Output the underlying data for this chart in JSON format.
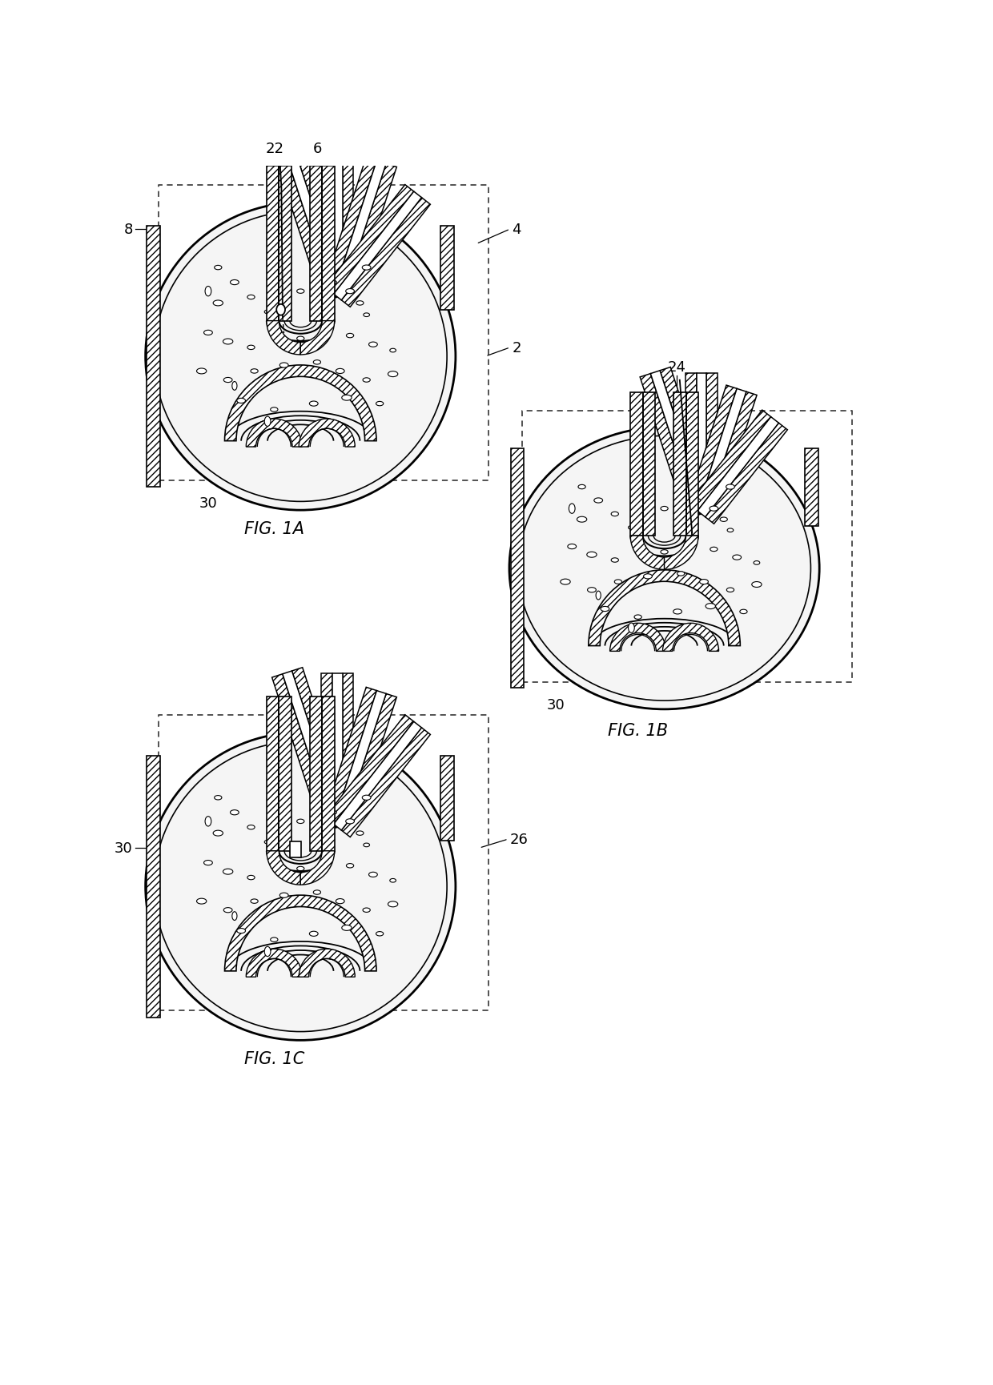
{
  "fig_width": 12.4,
  "fig_height": 17.31,
  "bg_color": "#ffffff",
  "label_fontsize": 13,
  "fig_label_fontsize": 15,
  "labels": {
    "fig1a": "FIG. 1A",
    "fig1b": "FIG. 1B",
    "fig1c": "FIG. 1C"
  }
}
